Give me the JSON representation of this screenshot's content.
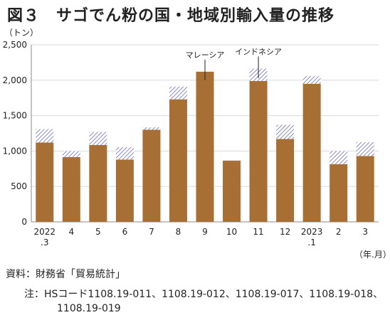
{
  "title": "図３　サゴでん粉の国・地域別輸入量の推移",
  "source": "資料：財務省「貿易統計」",
  "note_label": "注：",
  "note_line1": "HSコード1108.19-011、1108.19-012、1108.19-017、1108.19-018、",
  "note_line2": "1108.19-019",
  "colors": {
    "malaysia": "#a86f34",
    "indonesia": "#6b6fb0",
    "axis": "#888888",
    "grid": "#d9d9d9"
  },
  "chart_data": {
    "type": "bar",
    "stacked": true,
    "unit_label": "（トン）",
    "x_unit_label": "（年.月）",
    "categories": [
      "2022\n.3",
      "4",
      "5",
      "6",
      "7",
      "8",
      "9",
      "10",
      "11",
      "12",
      "2023\n.1",
      "2",
      "3"
    ],
    "ylim": [
      0,
      2500
    ],
    "yticks": [
      0,
      500,
      1000,
      1500,
      2000,
      2500
    ],
    "ytick_labels": [
      "0",
      "500",
      "1,000",
      "1,500",
      "2,000",
      "2,500"
    ],
    "grid": true,
    "series": [
      {
        "name": "マレーシア",
        "pattern": "solid",
        "values": [
          1120,
          915,
          1085,
          880,
          1300,
          1730,
          2120,
          865,
          1990,
          1170,
          1950,
          815,
          930
        ]
      },
      {
        "name": "インドネシア",
        "pattern": "hatched",
        "values": [
          190,
          85,
          185,
          175,
          35,
          180,
          0,
          0,
          175,
          200,
          110,
          185,
          195
        ]
      }
    ],
    "annotations": [
      {
        "text": "マレーシア",
        "category": "9"
      },
      {
        "text": "インドネシア",
        "category": "11"
      }
    ]
  }
}
